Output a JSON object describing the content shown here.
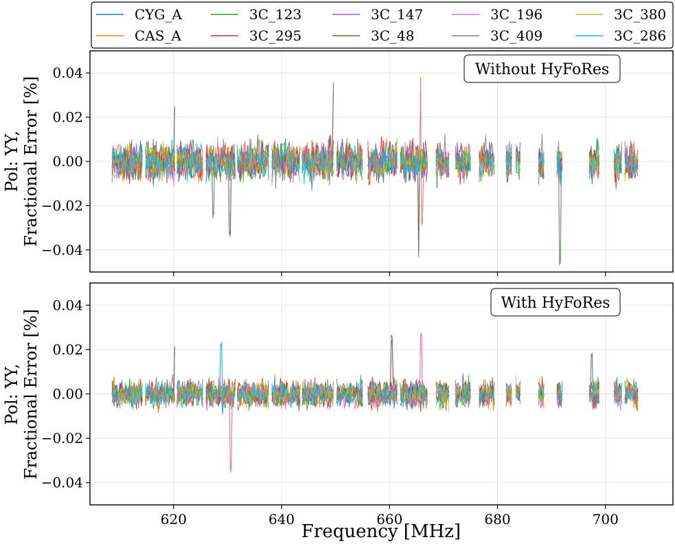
{
  "figure": {
    "xlabel": "Frequency [MHz]",
    "colors": {
      "CYG_A": "#1f77b4",
      "CAS_A": "#ff7f0e",
      "3C_123": "#2ca02c",
      "3C_295": "#d62728",
      "3C_147": "#9467bd",
      "3C_48": "#8c564b",
      "3C_196": "#e377c2",
      "3C_409": "#7f7f7f",
      "3C_380": "#bcbd22",
      "3C_286": "#17becf"
    }
  },
  "legend": {
    "placement": "top, above panels, 5 columns",
    "entries": [
      "CYG_A",
      "CAS_A",
      "3C_123",
      "3C_295",
      "3C_147",
      "3C_48",
      "3C_196",
      "3C_409",
      "3C_380",
      "3C_286"
    ]
  },
  "chart_data": [
    {
      "type": "line",
      "title": "",
      "annotation": "Without HyFoRes",
      "ylabel": [
        "Pol: YY,",
        "Fractional Error [%]"
      ],
      "xlabel": "",
      "xlim": [
        604.5,
        712.5
      ],
      "ylim": [
        -0.05,
        0.05
      ],
      "yticks": [
        -0.04,
        -0.02,
        0.0,
        0.02,
        0.04
      ],
      "ytick_labels": [
        "−0.04",
        "−0.02",
        "0.00",
        "0.02",
        "0.04"
      ],
      "xticks": [
        620,
        640,
        660,
        680,
        700
      ],
      "grid": true,
      "noise_amplitude": 0.0075,
      "segments": [
        {
          "start": 608.6,
          "end": 614.2
        },
        {
          "start": 614.8,
          "end": 620.2
        },
        {
          "start": 620.6,
          "end": 625.4
        },
        {
          "start": 626.0,
          "end": 631.4
        },
        {
          "start": 631.8,
          "end": 637.6
        },
        {
          "start": 638.2,
          "end": 643.4
        },
        {
          "start": 643.8,
          "end": 649.6
        },
        {
          "start": 650.2,
          "end": 655.0
        },
        {
          "start": 656.0,
          "end": 661.4
        },
        {
          "start": 662.0,
          "end": 667.0
        },
        {
          "start": 668.6,
          "end": 671.0
        },
        {
          "start": 672.2,
          "end": 675.0
        },
        {
          "start": 676.6,
          "end": 679.4
        },
        {
          "start": 681.6,
          "end": 682.6
        },
        {
          "start": 683.4,
          "end": 684.2
        },
        {
          "start": 687.6,
          "end": 688.6
        },
        {
          "start": 691.0,
          "end": 692.0
        },
        {
          "start": 697.0,
          "end": 698.8
        },
        {
          "start": 701.6,
          "end": 703.0
        },
        {
          "start": 703.6,
          "end": 706.0
        }
      ],
      "spikes": [
        {
          "x": 665.8,
          "y": 0.041
        },
        {
          "x": 665.4,
          "y": -0.044
        },
        {
          "x": 666.0,
          "y": -0.03
        },
        {
          "x": 649.6,
          "y": 0.036
        },
        {
          "x": 620.2,
          "y": 0.027
        },
        {
          "x": 630.4,
          "y": -0.034
        },
        {
          "x": 691.6,
          "y": -0.047
        },
        {
          "x": 627.4,
          "y": -0.026
        }
      ],
      "series": [
        {
          "name": "CYG_A"
        },
        {
          "name": "CAS_A"
        },
        {
          "name": "3C_123"
        },
        {
          "name": "3C_295"
        },
        {
          "name": "3C_147"
        },
        {
          "name": "3C_48"
        },
        {
          "name": "3C_196"
        },
        {
          "name": "3C_409"
        },
        {
          "name": "3C_380"
        },
        {
          "name": "3C_286"
        }
      ]
    },
    {
      "type": "line",
      "title": "",
      "annotation": "With HyFoRes",
      "ylabel": [
        "Pol: YY,",
        "Fractional Error [%]"
      ],
      "xlabel": "Frequency [MHz]",
      "xlim": [
        604.5,
        712.5
      ],
      "ylim": [
        -0.05,
        0.05
      ],
      "yticks": [
        -0.04,
        -0.02,
        0.0,
        0.02,
        0.04
      ],
      "ytick_labels": [
        "−0.04",
        "−0.02",
        "0.00",
        "0.02",
        "0.04"
      ],
      "xticks": [
        620,
        640,
        660,
        680,
        700
      ],
      "xtick_labels": [
        "620",
        "640",
        "660",
        "680",
        "700"
      ],
      "grid": true,
      "noise_amplitude": 0.0055,
      "segments": [
        {
          "start": 608.6,
          "end": 614.2
        },
        {
          "start": 614.8,
          "end": 620.2
        },
        {
          "start": 620.6,
          "end": 625.4
        },
        {
          "start": 626.0,
          "end": 631.4
        },
        {
          "start": 631.8,
          "end": 637.6
        },
        {
          "start": 638.2,
          "end": 643.4
        },
        {
          "start": 643.8,
          "end": 649.6
        },
        {
          "start": 650.2,
          "end": 655.0
        },
        {
          "start": 656.0,
          "end": 661.4
        },
        {
          "start": 662.0,
          "end": 667.0
        },
        {
          "start": 668.6,
          "end": 671.0
        },
        {
          "start": 672.2,
          "end": 675.0
        },
        {
          "start": 676.6,
          "end": 679.4
        },
        {
          "start": 681.6,
          "end": 682.6
        },
        {
          "start": 683.4,
          "end": 684.2
        },
        {
          "start": 687.6,
          "end": 688.6
        },
        {
          "start": 691.0,
          "end": 692.0
        },
        {
          "start": 697.0,
          "end": 698.8
        },
        {
          "start": 701.6,
          "end": 703.0
        },
        {
          "start": 703.6,
          "end": 706.0
        }
      ],
      "spikes": [
        {
          "x": 630.6,
          "y": -0.036
        },
        {
          "x": 665.8,
          "y": 0.029
        },
        {
          "x": 660.4,
          "y": 0.027
        },
        {
          "x": 628.8,
          "y": 0.024
        },
        {
          "x": 620.2,
          "y": 0.023
        },
        {
          "x": 697.4,
          "y": 0.019
        }
      ],
      "series": [
        {
          "name": "CYG_A"
        },
        {
          "name": "CAS_A"
        },
        {
          "name": "3C_123"
        },
        {
          "name": "3C_295"
        },
        {
          "name": "3C_147"
        },
        {
          "name": "3C_48"
        },
        {
          "name": "3C_196"
        },
        {
          "name": "3C_409"
        },
        {
          "name": "3C_380"
        },
        {
          "name": "3C_286"
        }
      ]
    }
  ]
}
